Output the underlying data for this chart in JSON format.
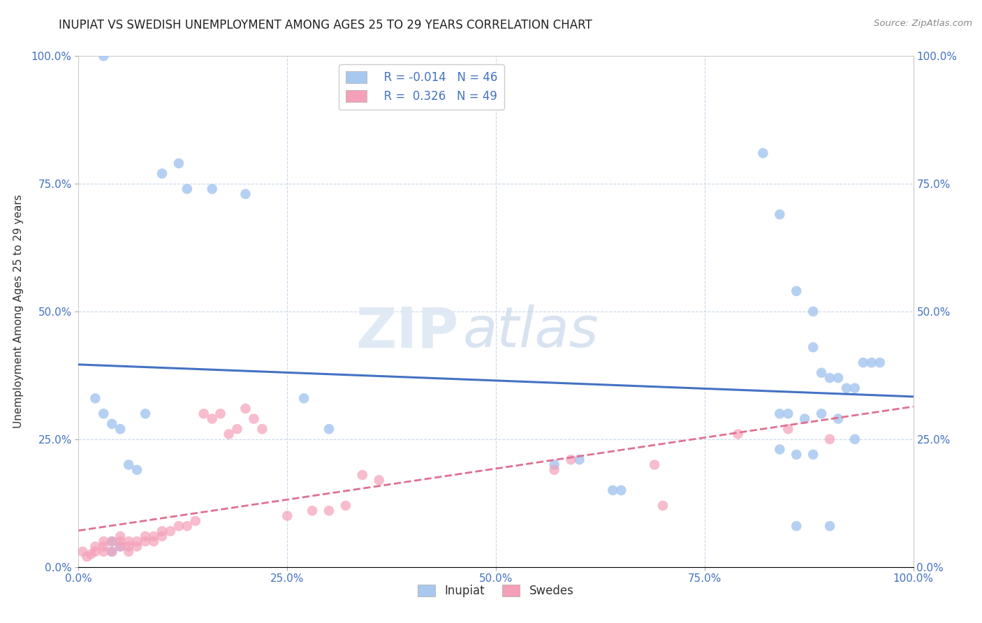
{
  "title": "INUPIAT VS SWEDISH UNEMPLOYMENT AMONG AGES 25 TO 29 YEARS CORRELATION CHART",
  "source": "Source: ZipAtlas.com",
  "ylabel": "Unemployment Among Ages 25 to 29 years",
  "xlim": [
    0.0,
    1.0
  ],
  "ylim": [
    0.0,
    1.0
  ],
  "xticks": [
    0.0,
    0.25,
    0.5,
    0.75,
    1.0
  ],
  "yticks": [
    0.0,
    0.25,
    0.5,
    0.75,
    1.0
  ],
  "inupiat_R": -0.014,
  "inupiat_N": 46,
  "swedes_R": 0.326,
  "swedes_N": 49,
  "inupiat_color": "#a8c8f0",
  "swedes_color": "#f4a0b8",
  "inupiat_line_color": "#4472c4",
  "swedes_line_color": "#e07090",
  "background_color": "#ffffff",
  "grid_color": "#c8d8e8",
  "watermark_zip": "ZIP",
  "watermark_atlas": "atlas",
  "legend_labels": [
    "Inupiat",
    "Swedes"
  ],
  "inupiat_x": [
    0.03,
    0.1,
    0.12,
    0.13,
    0.16,
    0.2,
    0.02,
    0.03,
    0.04,
    0.04,
    0.04,
    0.05,
    0.05,
    0.06,
    0.07,
    0.08,
    0.27,
    0.3,
    0.57,
    0.6,
    0.82,
    0.84,
    0.86,
    0.88,
    0.88,
    0.89,
    0.9,
    0.91,
    0.92,
    0.93,
    0.94,
    0.95,
    0.96,
    0.84,
    0.85,
    0.87,
    0.89,
    0.91,
    0.93,
    0.84,
    0.86,
    0.64,
    0.65,
    0.86,
    0.88,
    0.9
  ],
  "inupiat_y": [
    1.0,
    0.77,
    0.79,
    0.74,
    0.74,
    0.73,
    0.33,
    0.3,
    0.28,
    0.05,
    0.03,
    0.27,
    0.04,
    0.2,
    0.19,
    0.3,
    0.33,
    0.27,
    0.2,
    0.21,
    0.81,
    0.69,
    0.54,
    0.5,
    0.43,
    0.38,
    0.37,
    0.37,
    0.35,
    0.35,
    0.4,
    0.4,
    0.4,
    0.3,
    0.3,
    0.29,
    0.3,
    0.29,
    0.25,
    0.23,
    0.22,
    0.15,
    0.15,
    0.08,
    0.22,
    0.08
  ],
  "swedes_x": [
    0.005,
    0.01,
    0.015,
    0.02,
    0.02,
    0.03,
    0.03,
    0.03,
    0.04,
    0.04,
    0.05,
    0.05,
    0.05,
    0.06,
    0.06,
    0.06,
    0.07,
    0.07,
    0.08,
    0.08,
    0.09,
    0.09,
    0.1,
    0.1,
    0.11,
    0.12,
    0.13,
    0.14,
    0.15,
    0.16,
    0.17,
    0.18,
    0.19,
    0.2,
    0.21,
    0.22,
    0.25,
    0.28,
    0.3,
    0.32,
    0.34,
    0.36,
    0.57,
    0.59,
    0.69,
    0.7,
    0.79,
    0.85,
    0.9
  ],
  "swedes_y": [
    0.03,
    0.02,
    0.025,
    0.03,
    0.04,
    0.03,
    0.04,
    0.05,
    0.03,
    0.05,
    0.04,
    0.05,
    0.06,
    0.03,
    0.04,
    0.05,
    0.04,
    0.05,
    0.05,
    0.06,
    0.05,
    0.06,
    0.06,
    0.07,
    0.07,
    0.08,
    0.08,
    0.09,
    0.3,
    0.29,
    0.3,
    0.26,
    0.27,
    0.31,
    0.29,
    0.27,
    0.1,
    0.11,
    0.11,
    0.12,
    0.18,
    0.17,
    0.19,
    0.21,
    0.2,
    0.12,
    0.26,
    0.27,
    0.25
  ]
}
